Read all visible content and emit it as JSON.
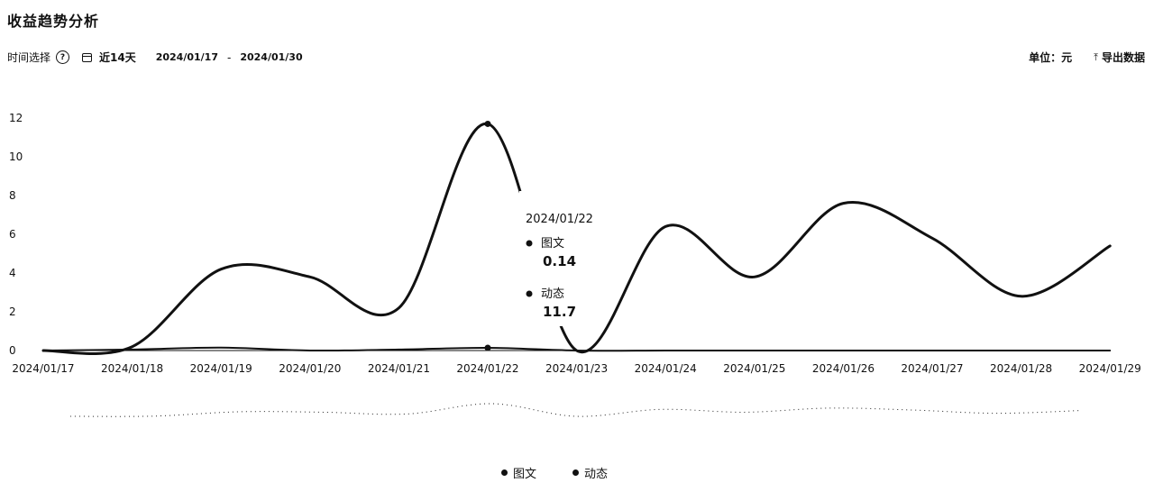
{
  "title": "收益趋势分析",
  "toolbar": {
    "time_label": "时间选择",
    "range_label": "近14天",
    "date_start": "2024/01/17",
    "date_sep": "-",
    "date_end": "2024/01/30",
    "unit_label": "单位：元",
    "export_label": "导出数据"
  },
  "icons": [
    "help-icon",
    "calendar-icon",
    "export-icon"
  ],
  "tooltip": {
    "date": "2024/01/22",
    "items": [
      {
        "name": "图文",
        "value": "0.14"
      },
      {
        "name": "动态",
        "value": "11.7"
      }
    ]
  },
  "legend": [
    "图文",
    "动态"
  ],
  "chart_data": {
    "type": "line",
    "smooth": true,
    "x": [
      "2024/01/17",
      "2024/01/18",
      "2024/01/19",
      "2024/01/20",
      "2024/01/21",
      "2024/01/22",
      "2024/01/23",
      "2024/01/24",
      "2024/01/25",
      "2024/01/26",
      "2024/01/27",
      "2024/01/28",
      "2024/01/29"
    ],
    "ylim": [
      0,
      12
    ],
    "yticks": [
      0,
      2,
      4,
      6,
      8,
      10,
      12
    ],
    "series": [
      {
        "name": "图文",
        "values": [
          0.0,
          0.05,
          0.15,
          0.0,
          0.05,
          0.14,
          0.0,
          0.0,
          0.0,
          0.0,
          0.0,
          0.0,
          0.0
        ]
      },
      {
        "name": "动态",
        "values": [
          0.0,
          0.2,
          4.2,
          3.8,
          2.2,
          11.7,
          0.0,
          6.4,
          3.8,
          7.6,
          5.8,
          2.8,
          5.4
        ]
      }
    ],
    "grid": false,
    "legend_position": "bottom",
    "color": "#111111"
  }
}
